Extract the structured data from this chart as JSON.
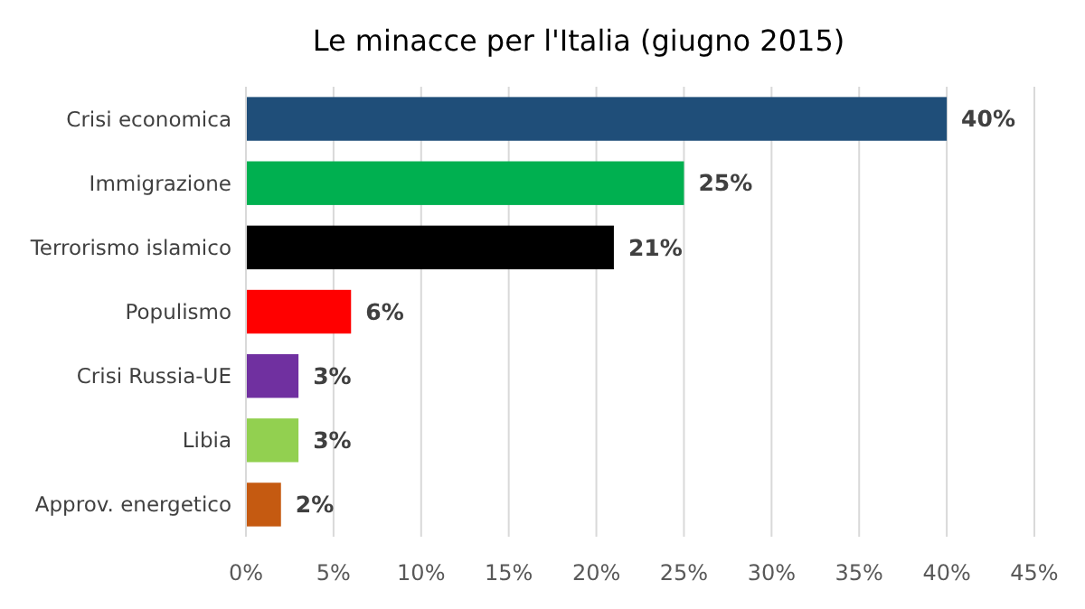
{
  "chart_data": {
    "type": "bar",
    "orientation": "horizontal",
    "title": "Le minacce per l'Italia (giugno 2015)",
    "categories": [
      "Crisi economica",
      "Immigrazione",
      "Terrorismo islamico",
      "Populismo",
      "Crisi Russia-UE",
      "Libia",
      "Approv. energetico"
    ],
    "values": [
      40,
      25,
      21,
      6,
      3,
      3,
      2
    ],
    "colors": [
      "#1f4e79",
      "#00b050",
      "#000000",
      "#ff0000",
      "#7030a0",
      "#92d050",
      "#c55a11"
    ],
    "value_labels": [
      "40%",
      "25%",
      "21%",
      "6%",
      "3%",
      "3%",
      "2%"
    ],
    "xlim": [
      0,
      45
    ],
    "xticks": [
      {
        "value": 0,
        "label": "0%"
      },
      {
        "value": 5,
        "label": "5%"
      },
      {
        "value": 10,
        "label": "10%"
      },
      {
        "value": 15,
        "label": "15%"
      },
      {
        "value": 20,
        "label": "20%"
      },
      {
        "value": 25,
        "label": "25%"
      },
      {
        "value": 30,
        "label": "30%"
      },
      {
        "value": 35,
        "label": "35%"
      },
      {
        "value": 40,
        "label": "40%"
      },
      {
        "value": 45,
        "label": "45%"
      }
    ],
    "grid": "x"
  }
}
